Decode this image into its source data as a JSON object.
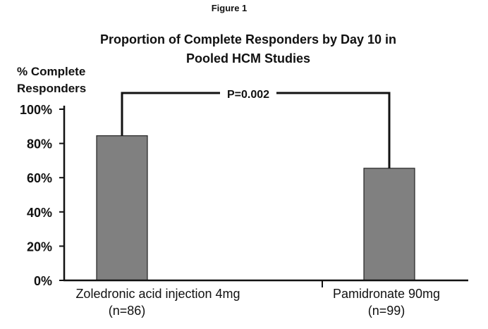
{
  "figure_label": "Figure 1",
  "chart_data": {
    "type": "bar",
    "title_lines": [
      "Proportion of Complete Responders by Day 10 in",
      "Pooled HCM Studies"
    ],
    "ylabel_lines": [
      "% Complete",
      "Responders"
    ],
    "categories": [
      {
        "lines": [
          "Zoledronic acid injection 4mg",
          "(n=86)"
        ]
      },
      {
        "lines": [
          "Pamidronate 90mg",
          "(n=99)"
        ]
      }
    ],
    "values": [
      84.5,
      65.5
    ],
    "ylim": [
      0,
      100
    ],
    "yticks": [
      0,
      20,
      40,
      60,
      80,
      100
    ],
    "ytick_labels": [
      "0%",
      "20%",
      "40%",
      "60%",
      "80%",
      "100%"
    ],
    "annotation": "P=0.002",
    "grid": false,
    "bar_color": "#808080"
  }
}
